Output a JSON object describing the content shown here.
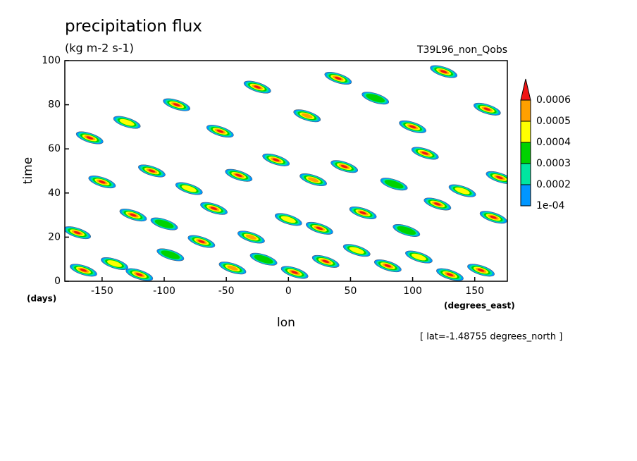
{
  "chart_data": {
    "type": "contour",
    "title": "precipitation flux",
    "units": "(kg m-2 s-1)",
    "run_label": "T39L96_non_Qobs",
    "x_label": "lon",
    "y_label": "time",
    "x_unit": "(degrees_east)",
    "y_unit": "(days)",
    "footnote": "[ lat=-1.48755 degrees_north ]",
    "xlim": [
      -180,
      176.25
    ],
    "ylim": [
      0,
      100
    ],
    "xticks": [
      -150,
      -100,
      -50,
      0,
      50,
      100,
      150
    ],
    "yticks": [
      0,
      20,
      40,
      60,
      80,
      100
    ],
    "levels": [
      {
        "value": 0.0001,
        "label": "1e-04"
      },
      0.0002,
      0.0003,
      0.0004,
      0.0005,
      0.0006
    ],
    "colors": [
      "#0096ff",
      "#00e6a0",
      "#00d200",
      "#ffff00",
      "#ffa000",
      "#f01414"
    ],
    "points": {
      "x": [
        -165,
        -140,
        -120,
        -95,
        -70,
        -45,
        -20,
        5,
        30,
        55,
        80,
        105,
        130,
        155,
        -170,
        -125,
        -100,
        -60,
        -30,
        0,
        25,
        60,
        95,
        120,
        165,
        -150,
        -110,
        -80,
        -40,
        -10,
        20,
        45,
        85,
        110,
        140,
        170,
        -160,
        -130,
        -90,
        -55,
        -25,
        15,
        40,
        70,
        100,
        125,
        160
      ],
      "y": [
        5,
        8,
        3,
        12,
        18,
        6,
        10,
        4,
        9,
        14,
        7,
        11,
        3,
        5,
        22,
        30,
        26,
        33,
        20,
        28,
        24,
        31,
        23,
        35,
        29,
        45,
        50,
        42,
        48,
        55,
        46,
        52,
        44,
        58,
        41,
        47,
        65,
        72,
        80,
        68,
        88,
        75,
        92,
        83,
        70,
        95,
        78
      ],
      "values": [
        0.00065,
        0.0004,
        0.0006,
        0.00035,
        0.00065,
        0.0005,
        0.0003,
        0.00065,
        0.0006,
        0.00045,
        0.00065,
        0.0004,
        0.0006,
        0.00065,
        0.0006,
        0.00065,
        0.00035,
        0.00065,
        0.0005,
        0.0004,
        0.00065,
        0.00065,
        0.0003,
        0.00065,
        0.0006,
        0.00065,
        0.00065,
        0.0004,
        0.00065,
        0.00065,
        0.0005,
        0.00065,
        0.0003,
        0.0006,
        0.00045,
        0.00065,
        0.00065,
        0.0004,
        0.00065,
        0.0006,
        0.00065,
        0.0005,
        0.00065,
        0.00035,
        0.00065,
        0.00065,
        0.0006
      ]
    }
  }
}
